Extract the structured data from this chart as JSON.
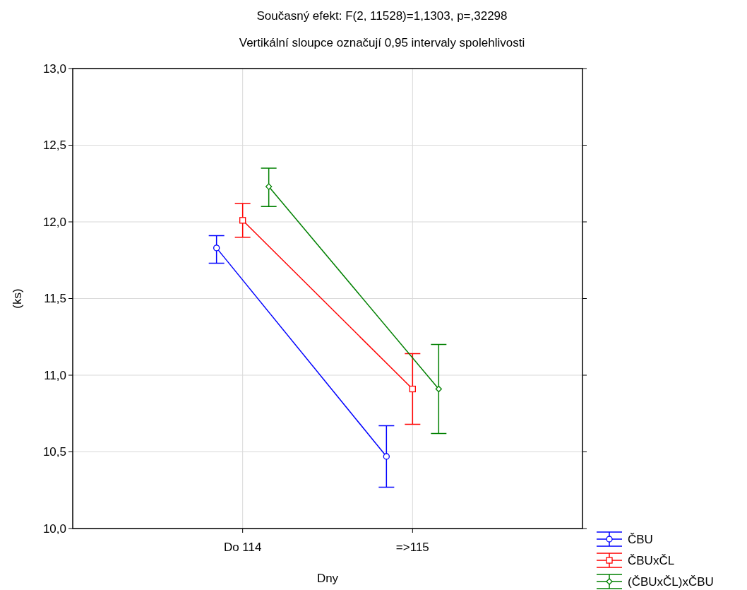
{
  "chart_data": {
    "type": "line",
    "title": "Současný efekt: F(2, 11528)=1,1303, p=,32298",
    "subtitle": "Vertikální sloupce označují 0,95 intervaly spolehlivosti",
    "xlabel": "Dny",
    "ylabel": "(ks)",
    "categories": [
      "Do 114",
      "=>115"
    ],
    "ylim": [
      10,
      13
    ],
    "yticks": [
      {
        "value": 10,
        "label": "10,0"
      },
      {
        "value": 10.5,
        "label": "10,5"
      },
      {
        "value": 11,
        "label": "11,0"
      },
      {
        "value": 11.5,
        "label": "11,5"
      },
      {
        "value": 12,
        "label": "12,0"
      },
      {
        "value": 12.5,
        "label": "12,5"
      },
      {
        "value": 13,
        "label": "13,0"
      }
    ],
    "grid": true,
    "legend": "bottom right",
    "line_style": "solid",
    "series": [
      {
        "name": "ČBU",
        "color": "#0000ff",
        "marker": "circle",
        "values": [
          11.83,
          10.47
        ],
        "errors": [
          [
            11.73,
            11.91
          ],
          [
            10.27,
            10.67
          ]
        ]
      },
      {
        "name": "ČBUxČL",
        "color": "#ff0000",
        "marker": "square",
        "values": [
          12.01,
          10.91
        ],
        "errors": [
          [
            11.9,
            12.12
          ],
          [
            10.68,
            11.14
          ]
        ]
      },
      {
        "name": "(ČBUxČL)xČBU",
        "color": "#008000",
        "marker": "diamond",
        "values": [
          12.23,
          10.91
        ],
        "errors": [
          [
            12.1,
            12.35
          ],
          [
            10.62,
            11.2
          ]
        ]
      }
    ]
  }
}
